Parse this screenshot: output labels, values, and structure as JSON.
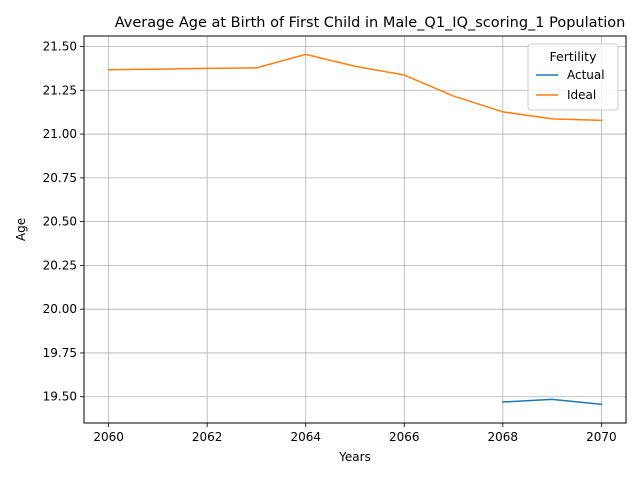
{
  "chart_data": {
    "type": "line",
    "title": "Average Age at Birth of First Child in Male_Q1_IQ_scoring_1 Population",
    "xlabel": "Years",
    "ylabel": "Age",
    "xlim": [
      2059.5,
      2070.5
    ],
    "ylim": [
      19.35,
      21.56
    ],
    "xticks": [
      2060,
      2062,
      2064,
      2066,
      2068,
      2070
    ],
    "xtick_labels": [
      "2060",
      "2062",
      "2064",
      "2066",
      "2068",
      "2070"
    ],
    "yticks": [
      19.5,
      19.75,
      20.0,
      20.25,
      20.5,
      20.75,
      21.0,
      21.25,
      21.5
    ],
    "ytick_labels": [
      "19.50",
      "19.75",
      "20.00",
      "20.25",
      "20.50",
      "20.75",
      "21.00",
      "21.25",
      "21.50"
    ],
    "grid": true,
    "legend": {
      "title": "Fertility",
      "position": "top-right"
    },
    "series": [
      {
        "name": "Actual",
        "color": "#1f77b4",
        "x": [
          2068,
          2069,
          2070
        ],
        "y": [
          19.47,
          19.485,
          19.457
        ]
      },
      {
        "name": "Ideal",
        "color": "#ff7f0e",
        "x": [
          2060,
          2061,
          2062,
          2063,
          2064,
          2065,
          2066,
          2067,
          2068,
          2069,
          2070
        ],
        "y": [
          21.367,
          21.371,
          21.375,
          21.378,
          21.455,
          21.387,
          21.337,
          21.217,
          21.127,
          21.087,
          21.078
        ]
      }
    ]
  }
}
